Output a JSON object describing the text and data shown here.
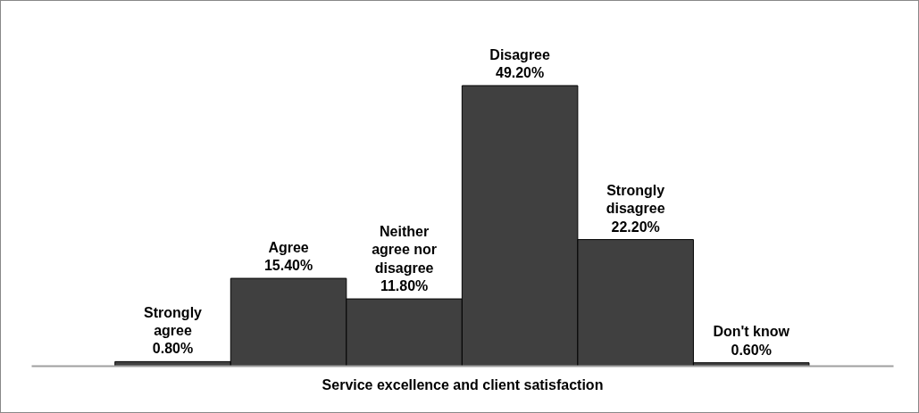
{
  "chart_data": {
    "type": "bar",
    "xlabel": "Service excellence and client satisfaction",
    "categories": [
      "Strongly agree",
      "Agree",
      "Neither agree nor disagree",
      "Disagree",
      "Strongly disagree",
      "Don't know"
    ],
    "values": [
      0.8,
      15.4,
      11.8,
      49.2,
      22.2,
      0.6
    ],
    "value_labels": [
      "0.80%",
      "15.40%",
      "11.80%",
      "49.20%",
      "22.20%",
      "0.60%"
    ],
    "color": "#404040",
    "grid": false
  }
}
